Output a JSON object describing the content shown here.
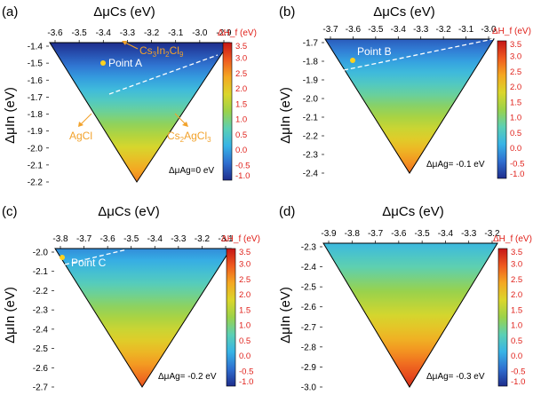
{
  "colorbar": {
    "label": "ΔH_f (eV)",
    "ticks": [
      "3.5",
      "3.0",
      "2.5",
      "2.0",
      "1.5",
      "1.0",
      "0.5",
      "0.0",
      "-0.5",
      "-1.0"
    ],
    "range": [
      -1.0,
      3.5
    ],
    "stops": [
      "#1e2d8c",
      "#2f6fd0",
      "#37b4e6",
      "#5bd0b4",
      "#9ad24a",
      "#dbd62b",
      "#f4a822",
      "#ef5a1f",
      "#c51617"
    ],
    "label_color": "#e0201a"
  },
  "label_colors": {
    "phase": "#f2a22b",
    "point": "#ffd21e",
    "axis": "#000000"
  },
  "chart_data": [
    {
      "type": "heatmap",
      "panel": "(a)",
      "xlabel": "ΔμCs (eV)",
      "ylabel": "ΔμIn (eV)",
      "xticks": [
        "-3.6",
        "-3.5",
        "-3.4",
        "-3.3",
        "-3.2",
        "-3.1",
        "-3.0",
        "-2.9"
      ],
      "yticks": [
        "-1.4",
        "-1.5",
        "-1.6",
        "-1.7",
        "-1.8",
        "-1.9",
        "-2.0",
        "-2.1",
        "-2.2"
      ],
      "condition": "ΔμAg=0 eV",
      "color_range": [
        -1.0,
        3.5
      ],
      "value_at_top_edge": -1.0,
      "value_at_bottom_vertex": 2.7,
      "phase_labels": [
        "Cs3In2Cl9",
        "AgCl",
        "Cs2AgCl3"
      ],
      "point": "Point A"
    },
    {
      "type": "heatmap",
      "panel": "(b)",
      "xlabel": "ΔμCs (eV)",
      "ylabel": "ΔμIn (eV)",
      "xticks": [
        "-3.7",
        "-3.6",
        "-3.5",
        "-3.4",
        "-3.3",
        "-3.2",
        "-3.1",
        "-3.0"
      ],
      "yticks": [
        "-1.7",
        "-1.8",
        "-1.9",
        "-2.0",
        "-2.1",
        "-2.2",
        "-2.3",
        "-2.4"
      ],
      "condition": "ΔμAg= -0.1 eV",
      "color_range": [
        -1.0,
        3.5
      ],
      "value_at_top_edge": -0.6,
      "value_at_bottom_vertex": 2.8,
      "point": "Point B"
    },
    {
      "type": "heatmap",
      "panel": "(c)",
      "xlabel": "ΔμCs (eV)",
      "ylabel": "ΔμIn (eV)",
      "xticks": [
        "-3.8",
        "-3.7",
        "-3.6",
        "-3.5",
        "-3.4",
        "-3.3",
        "-3.2",
        "-3.1"
      ],
      "yticks": [
        "-2.0",
        "-2.1",
        "-2.2",
        "-2.3",
        "-2.4",
        "-2.5",
        "-2.6",
        "-2.7"
      ],
      "condition": "ΔμAg= -0.2 eV",
      "color_range": [
        -1.0,
        3.5
      ],
      "value_at_top_edge": -0.2,
      "value_at_bottom_vertex": 3.0,
      "point": "Point C"
    },
    {
      "type": "heatmap",
      "panel": "(d)",
      "xlabel": "ΔμCs (eV)",
      "ylabel": "ΔμIn (eV)",
      "xticks": [
        "-3.9",
        "-3.8",
        "-3.7",
        "-3.6",
        "-3.5",
        "-3.4",
        "-3.3",
        "-3.2"
      ],
      "yticks": [
        "-2.3",
        "-2.4",
        "-2.5",
        "-2.6",
        "-2.7",
        "-2.8",
        "-2.9",
        "-3.0"
      ],
      "condition": "ΔμAg= -0.3 eV",
      "color_range": [
        -1.0,
        3.5
      ],
      "value_at_top_edge": 0.2,
      "value_at_bottom_vertex": 3.3,
      "point": ""
    }
  ]
}
